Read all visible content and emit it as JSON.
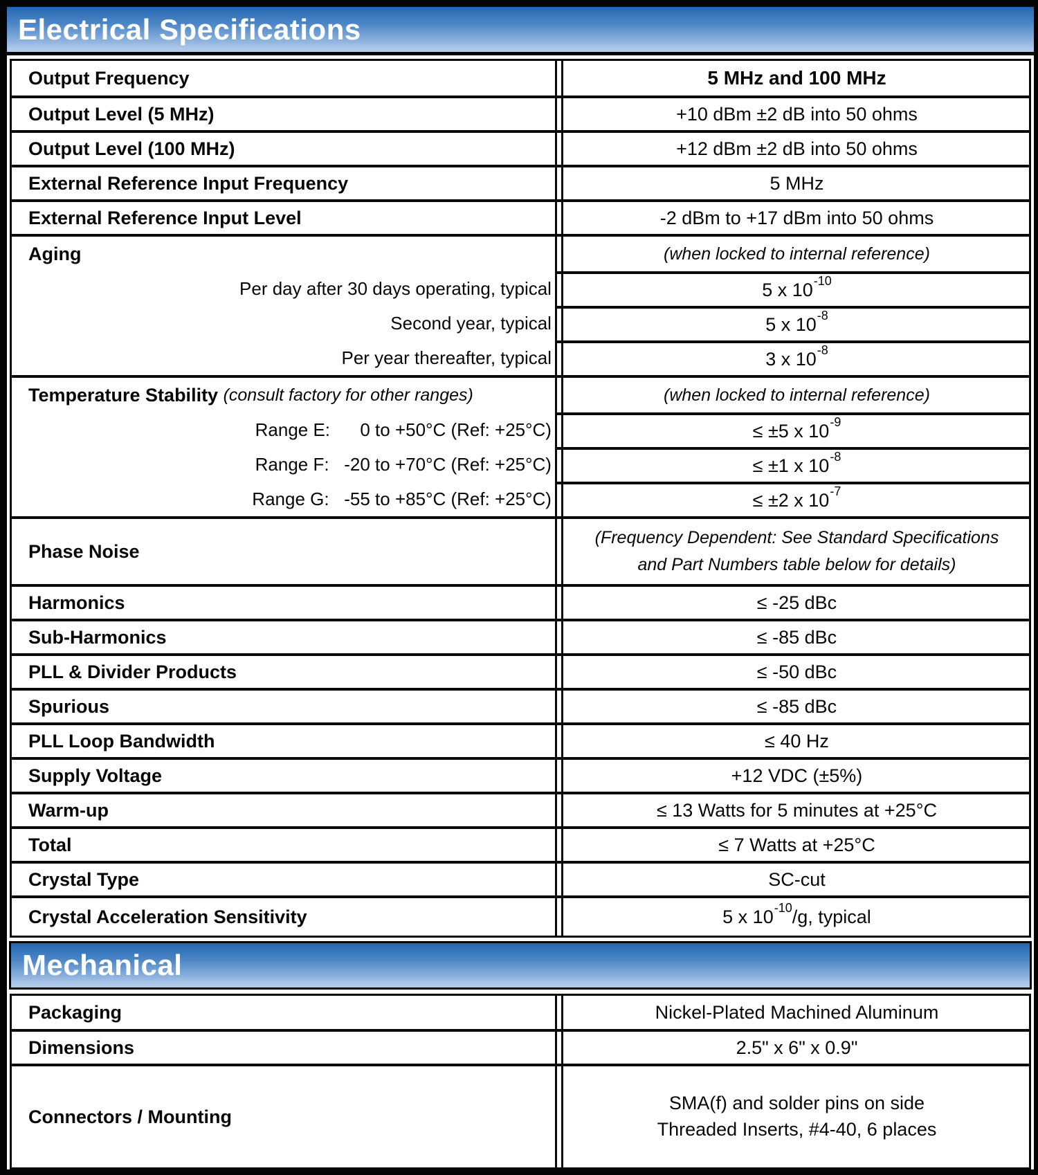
{
  "page": {
    "electrical_header": "Electrical Specifications",
    "mechanical_header": "Mechanical",
    "colors": {
      "band_gradient_top": "#2264ae",
      "band_gradient_bottom": "#b6cdea",
      "border": "#050505",
      "header_text": "#ffffff"
    }
  },
  "electrical": {
    "simple_rows_top": [
      {
        "label": "Output Frequency",
        "value": "5 MHz and 100 MHz"
      },
      {
        "label": "Output Level (5 MHz)",
        "value": "+10 dBm ±2 dB into 50 ohms"
      },
      {
        "label": "Output Level (100 MHz)",
        "value": "+12 dBm ±2 dB into 50 ohms"
      },
      {
        "label": "External Reference Input Frequency",
        "value": "5 MHz"
      },
      {
        "label": "External Reference Input Level",
        "value": "-2 dBm to +17 dBm into 50 ohms"
      }
    ],
    "aging": {
      "label": "Aging",
      "note": "(when locked to internal reference)",
      "sub_rows": [
        {
          "label": "Per day after 30 days operating, typical",
          "base": "5 x 10",
          "exp": "-10"
        },
        {
          "label": "Second year, typical",
          "base": "5 x 10",
          "exp": "-8"
        },
        {
          "label": "Per year thereafter, typical",
          "base": "3 x 10",
          "exp": "-8"
        }
      ]
    },
    "temperature_stability": {
      "label": "Temperature Stability ",
      "label_note": "(consult factory for other ranges)",
      "note": "(when locked to internal reference)",
      "sub_rows": [
        {
          "label": "Range E:      0 to +50°C (Ref: +25°C)",
          "base": "≤ ±5 x 10",
          "exp": "-9"
        },
        {
          "label": "Range F:   -20 to +70°C (Ref: +25°C)",
          "base": "≤ ±1 x 10",
          "exp": "-8"
        },
        {
          "label": "Range G:   -55 to +85°C (Ref: +25°C)",
          "base": "≤ ±2 x 10",
          "exp": "-7"
        }
      ]
    },
    "phase_noise": {
      "label": "Phase Noise",
      "note_line1": "(Frequency Dependent: See Standard Specifications",
      "note_line2": "and Part Numbers table below for details)"
    },
    "simple_rows_bottom": [
      {
        "label": "Harmonics",
        "value": "≤ -25 dBc"
      },
      {
        "label": "Sub-Harmonics",
        "value": "≤ -85 dBc"
      },
      {
        "label": "PLL & Divider Products",
        "value": "≤ -50 dBc"
      },
      {
        "label": "Spurious",
        "value": "≤ -85 dBc"
      },
      {
        "label": "PLL Loop Bandwidth",
        "value": "≤ 40 Hz"
      },
      {
        "label": "Supply Voltage",
        "value": "+12 VDC (±5%)"
      },
      {
        "label": "Warm-up",
        "value": "≤ 13 Watts for 5 minutes at +25°C"
      },
      {
        "label": "Total",
        "value": "≤ 7 Watts at +25°C"
      },
      {
        "label": "Crystal Type",
        "value": "SC-cut"
      }
    ],
    "crystal_accel": {
      "label": "Crystal Acceleration Sensitivity",
      "base": "5 x 10",
      "exp": "-10",
      "suffix": "/g, typical"
    }
  },
  "mechanical": {
    "rows": [
      {
        "label": "Packaging",
        "value": "Nickel-Plated Machined Aluminum"
      },
      {
        "label": "Dimensions",
        "value": "2.5\" x 6\" x 0.9\""
      },
      {
        "label": "Connectors / Mounting",
        "value_line1": "SMA(f) and solder pins on side",
        "value_line2": "Threaded Inserts, #4-40, 6 places"
      }
    ]
  }
}
